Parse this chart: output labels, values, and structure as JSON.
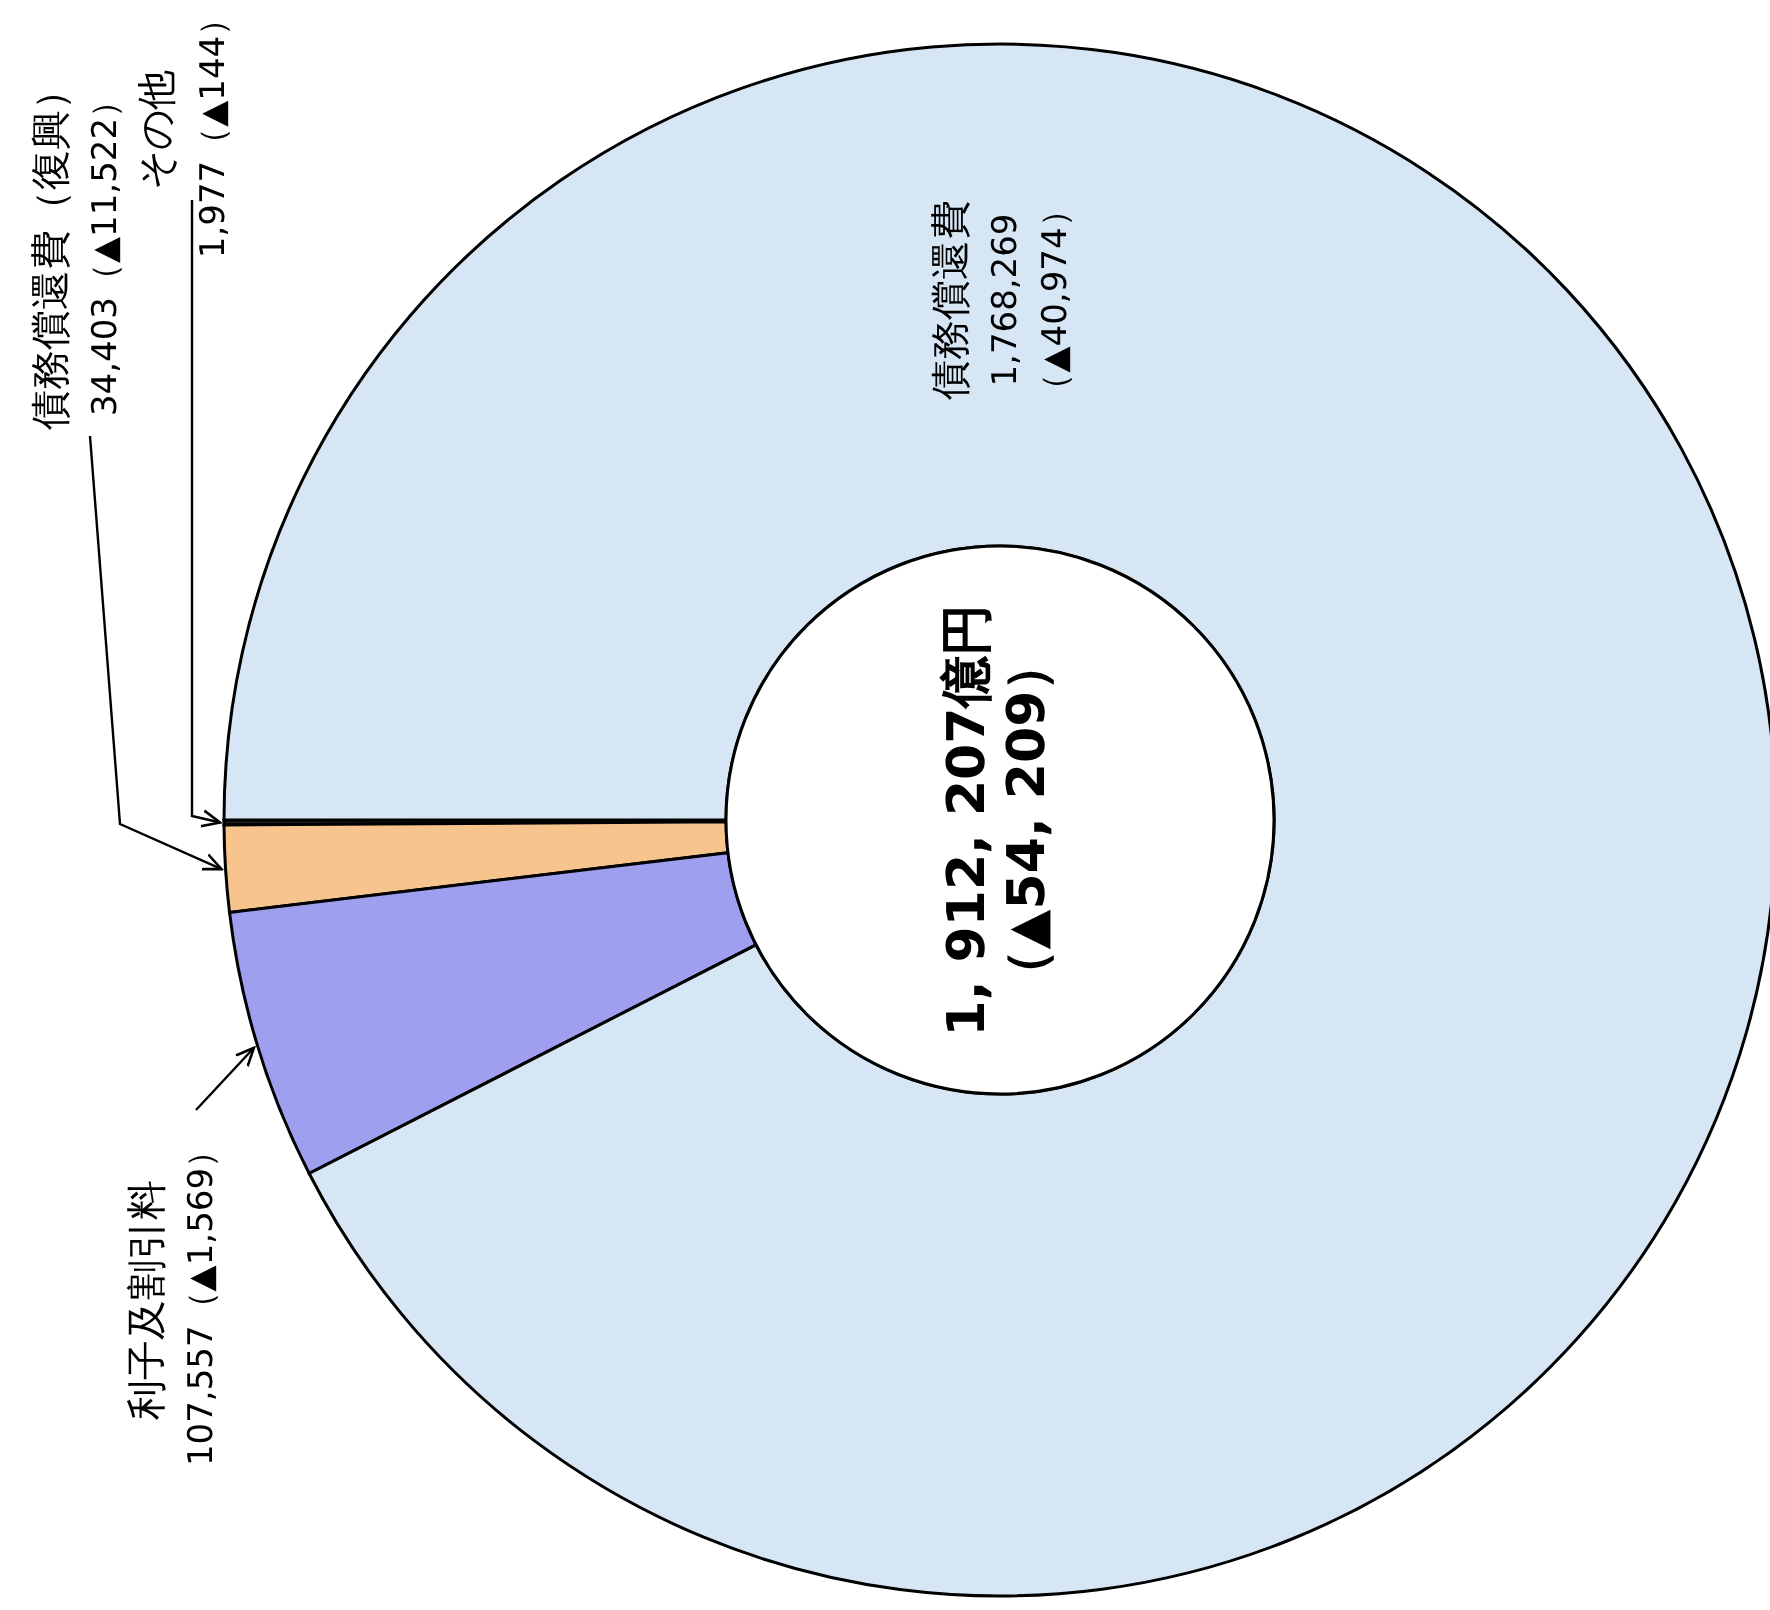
{
  "chart_data": {
    "type": "donut",
    "categories": [
      "その他",
      "債務償還費（復興）",
      "利子及割引料",
      "債務償還費"
    ],
    "values": [
      1977,
      34403,
      107557,
      1768269
    ],
    "colors": [
      "#222222",
      "#f7c48e",
      "#9f9ff0",
      "#d7e6f5"
    ],
    "value_labels": [
      "1,977（▲144）",
      "34,403（▲11,522）",
      "107,557（▲1,569）",
      "1,768,269（▲40,974）"
    ],
    "annotations": [
      "1, 912, 207億円",
      "（▲54, 209）"
    ]
  }
}
